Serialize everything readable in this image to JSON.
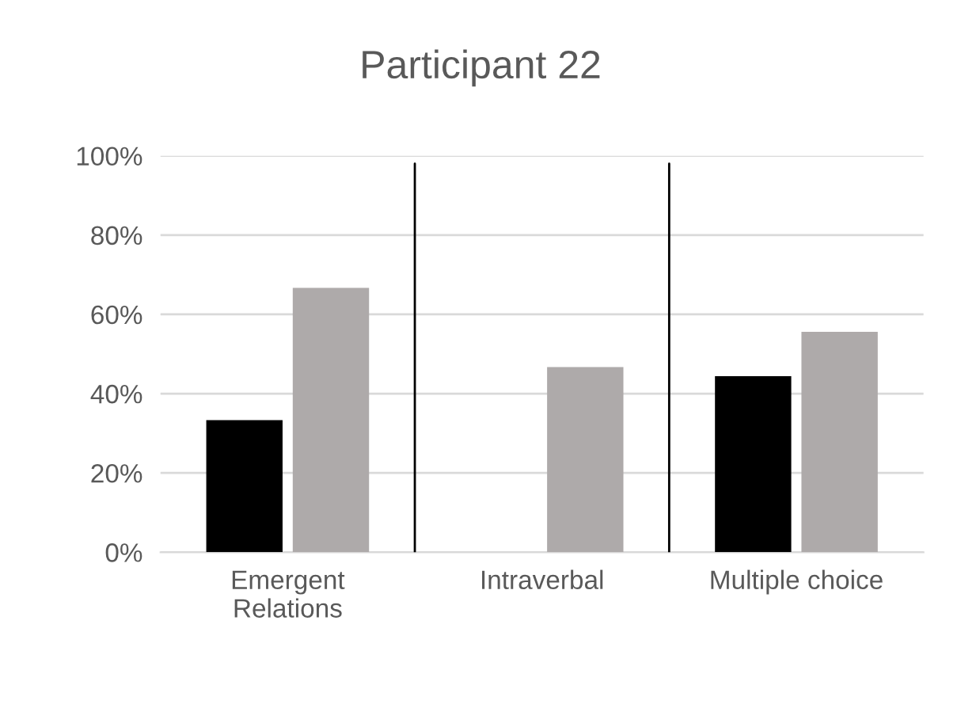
{
  "chart_data": {
    "type": "bar",
    "title": "Participant 22",
    "categories": [
      "Emergent\nRelations",
      "Intraverbal",
      "Multiple choice"
    ],
    "series": [
      {
        "color": "#000000",
        "values": [
          33.3,
          0,
          44.4
        ]
      },
      {
        "color": "#aeaaaa",
        "values": [
          66.7,
          46.7,
          55.6
        ]
      }
    ],
    "ylim": [
      0,
      100
    ],
    "yticks": [
      {
        "value": 0,
        "label": "0%"
      },
      {
        "value": 20,
        "label": "20%"
      },
      {
        "value": 40,
        "label": "40%"
      },
      {
        "value": 60,
        "label": "60%"
      },
      {
        "value": 80,
        "label": "80%"
      },
      {
        "value": 100,
        "label": "100%"
      }
    ],
    "grid": "y"
  }
}
